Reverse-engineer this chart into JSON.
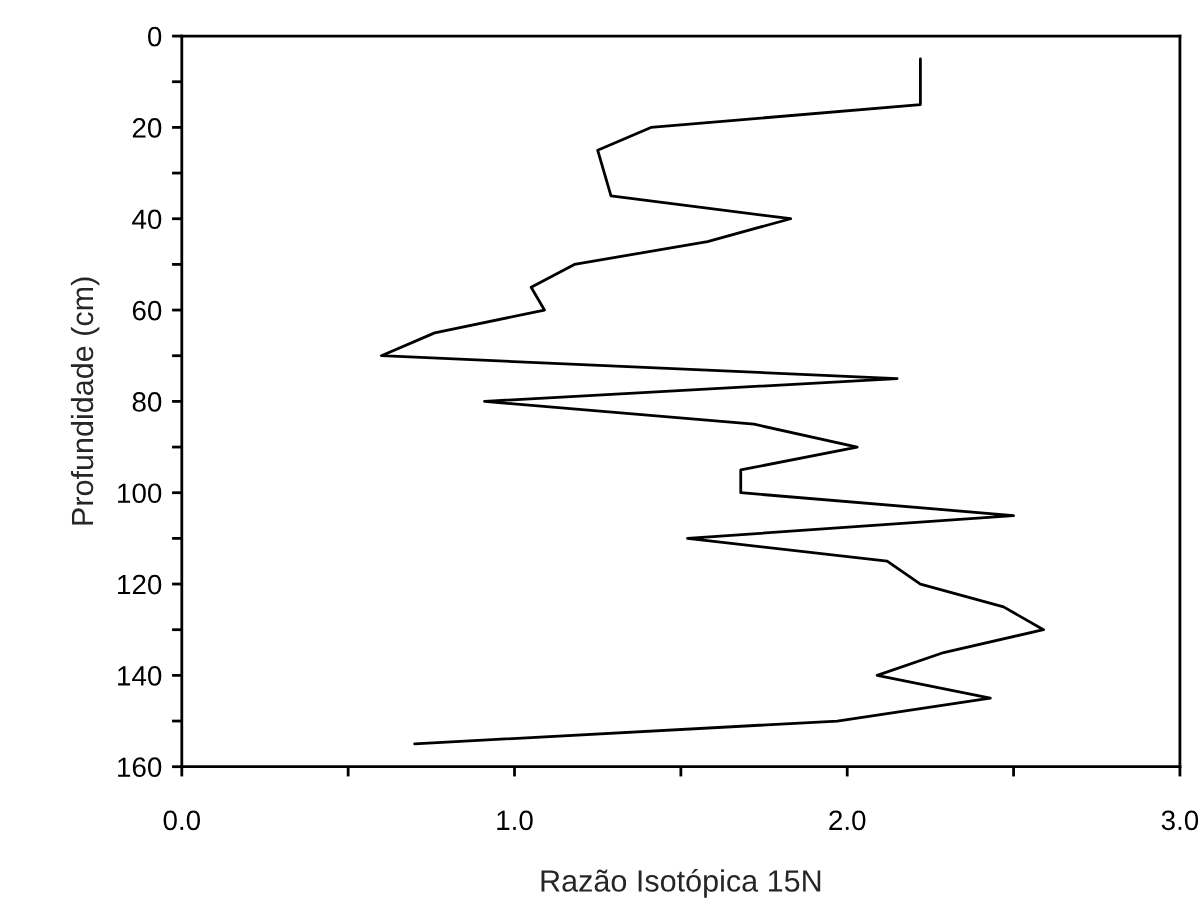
{
  "chart_data": {
    "type": "line",
    "xlabel": "Razão Isotópica 15N",
    "ylabel": "Profundidade (cm)",
    "x": [
      2.22,
      2.22,
      1.41,
      1.25,
      1.29,
      1.83,
      1.58,
      1.18,
      1.05,
      1.09,
      0.76,
      0.6,
      2.15,
      0.91,
      1.72,
      2.03,
      1.68,
      1.68,
      2.5,
      1.52,
      2.12,
      2.22,
      2.47,
      2.59,
      2.29,
      2.09,
      2.43,
      1.97,
      0.7
    ],
    "series": [
      {
        "color": "#000000",
        "values": [
          5,
          15,
          20,
          25,
          35,
          40,
          45,
          50,
          55,
          60,
          65,
          70,
          75,
          80,
          85,
          90,
          95,
          100,
          105,
          110,
          115,
          120,
          125,
          130,
          135,
          140,
          145,
          150,
          155
        ]
      }
    ],
    "xlim": [
      0,
      3.0
    ],
    "ylim": [
      160,
      0
    ],
    "xticks": [
      {
        "value": 0,
        "label": "0.0"
      },
      {
        "value": 0.5,
        "label": null
      },
      {
        "value": 1.0,
        "label": "1.0"
      },
      {
        "value": 1.5,
        "label": null
      },
      {
        "value": 2.0,
        "label": "2.0"
      },
      {
        "value": 2.5,
        "label": null
      },
      {
        "value": 3.0,
        "label": "3.0"
      }
    ],
    "yticks": [
      0,
      {
        "value": 10,
        "label": null
      },
      20,
      {
        "value": 30,
        "label": null
      },
      40,
      {
        "value": 50,
        "label": null
      },
      60,
      {
        "value": 70,
        "label": null
      },
      80,
      {
        "value": 90,
        "label": null
      },
      100,
      {
        "value": 110,
        "label": null
      },
      120,
      {
        "value": 130,
        "label": null
      },
      140,
      {
        "value": 150,
        "label": null
      },
      160
    ],
    "grid": false,
    "marker": "none",
    "line_style": "solid"
  }
}
